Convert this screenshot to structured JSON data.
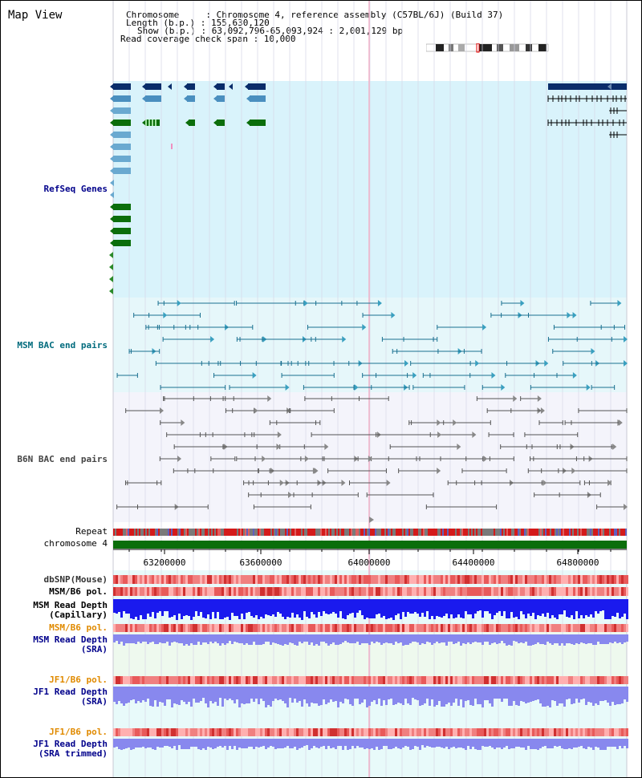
{
  "header": {
    "title": "Map View",
    "info_lines": [
      "Chromosome     : Chromosome 4, reference assembly (C57BL/6J) (Build 37)",
      "Length (b.p.) : 155,630,120",
      "Show (b.p.) : 63,092,796-65,093,924 : 2,001,129 bp",
      "Read coverage check span : 10,000"
    ]
  },
  "tracks": {
    "refseq": {
      "label": "RefSeq Genes",
      "color": "#00008b"
    },
    "msm_bac": {
      "label": "MSM BAC end pairs",
      "color": "#006b7d"
    },
    "b6n_bac": {
      "label": "B6N BAC end pairs",
      "color": "#444444"
    },
    "repeat": {
      "label": "Repeat",
      "color": "#000000"
    },
    "chrom": {
      "label": "chromosome 4",
      "color": "#000000"
    },
    "dbsnp": {
      "label": "dbSNP(Mouse)",
      "color": "#333333"
    },
    "msm_b6_pol_1": {
      "label": "MSM/B6 pol.",
      "color": "#000000"
    },
    "msm_depth_cap": {
      "label_1": "MSM Read Depth",
      "label_2": "(Capillary)",
      "color": "#000000"
    },
    "msm_b6_pol_2": {
      "label": "MSM/B6 pol.",
      "color": "#e08a00"
    },
    "msm_depth_sra": {
      "label_1": "MSM Read Depth",
      "label_2": "(SRA)",
      "color": "#00008b"
    },
    "jf1_b6_pol_1": {
      "label": "JF1/B6 pol.",
      "color": "#e08a00"
    },
    "jf1_depth_sra": {
      "label_1": "JF1 Read Depth",
      "label_2": "(SRA)",
      "color": "#00008b"
    },
    "jf1_b6_pol_2": {
      "label": "JF1/B6 pol.",
      "color": "#e08a00"
    },
    "jf1_depth_trim": {
      "label_1": "JF1 Read Depth",
      "label_2": "(SRA trimmed)",
      "color": "#00008b"
    }
  },
  "axis": {
    "ticks": [
      "63200000",
      "63600000",
      "64000000",
      "64400000",
      "64800000"
    ]
  },
  "colors": {
    "refseq_bg": "#d9f3fb",
    "gene_dark": "#0a2d6a",
    "gene_mid": "#4a8fbf",
    "gene_light": "#6aa9d0",
    "gene_green": "#0b6e0b",
    "chromosome_bar": "#0b6e0b",
    "snp": "#f08080",
    "depth_cap": "#1a1aee",
    "depth_sra": "#8888ee"
  }
}
